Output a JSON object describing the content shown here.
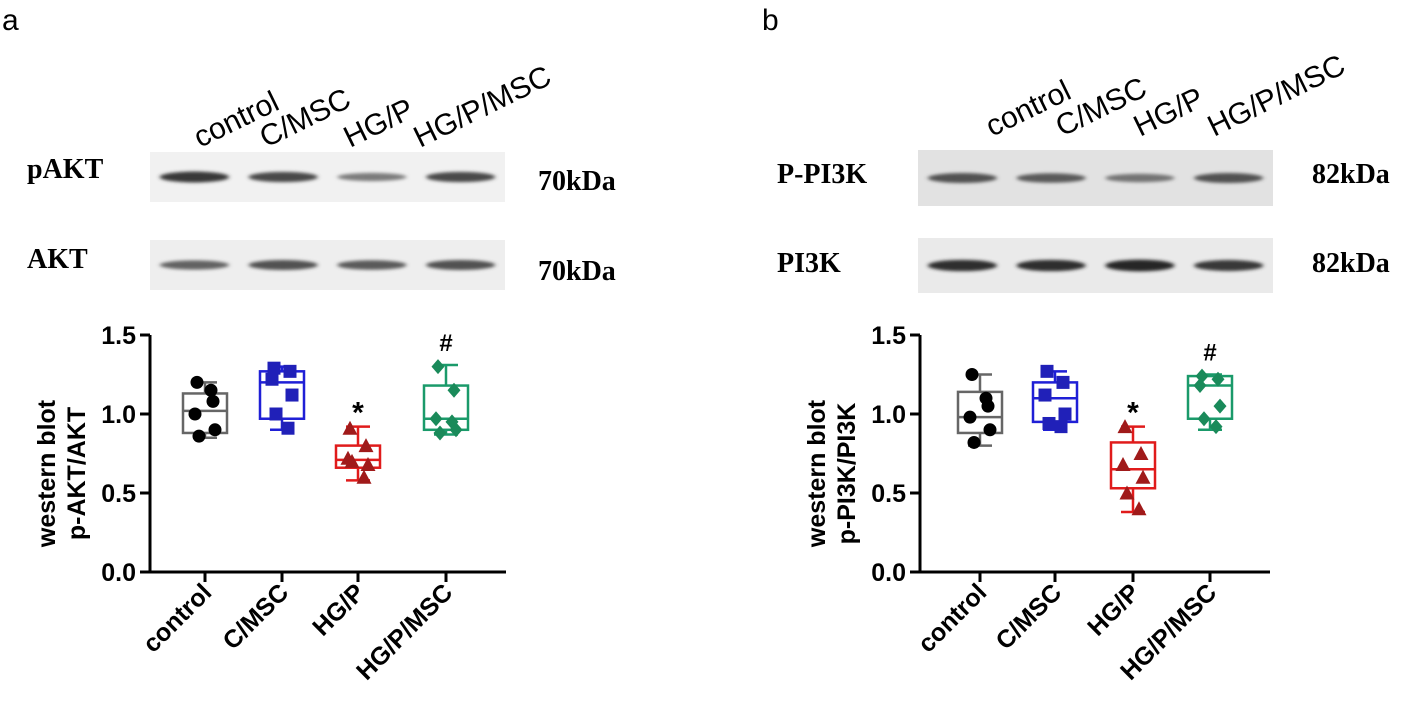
{
  "panels": [
    {
      "letter": "a",
      "lane_labels": [
        "control",
        "C/MSC",
        "HG/P",
        "HG/P/MSC"
      ],
      "blots": [
        {
          "name": "pAKT",
          "size": "70kDa",
          "intensity": [
            0.85,
            0.75,
            0.45,
            0.75
          ]
        },
        {
          "name": "AKT",
          "size": "70kDa",
          "intensity": [
            0.6,
            0.7,
            0.65,
            0.7
          ]
        }
      ]
    },
    {
      "letter": "b",
      "lane_labels": [
        "control",
        "C/MSC",
        "HG/P",
        "HG/P/MSC"
      ],
      "blots": [
        {
          "name": "P-PI3K",
          "size": "82kDa",
          "intensity": [
            0.7,
            0.65,
            0.5,
            0.7
          ]
        },
        {
          "name": "PI3K",
          "size": "82kDa",
          "intensity": [
            0.9,
            0.9,
            0.95,
            0.85
          ]
        }
      ]
    }
  ],
  "chart_data": [
    {
      "type": "box",
      "ylabel": [
        "western blot",
        "p-AKT/AKT"
      ],
      "ylim": [
        0,
        1.5
      ],
      "yticks": [
        "0.0",
        "0.5",
        "1.0",
        "1.5"
      ],
      "categories": [
        "control",
        "C/MSC",
        "HG/P",
        "HG/P/MSC"
      ],
      "colors": [
        "#666666",
        "#1f1fd6",
        "#e01b1b",
        "#1a9a6a"
      ],
      "marker_colors": [
        "#000000",
        "#2020b8",
        "#a01a1a",
        "#1a8a5a"
      ],
      "markers": [
        "circle",
        "square",
        "triangle",
        "diamond"
      ],
      "annotations": [
        "",
        "",
        "*",
        "#"
      ],
      "series": [
        {
          "points": [
            1.2,
            1.08,
            1.0,
            0.9,
            0.86,
            1.15
          ],
          "min": 0.85,
          "q1": 0.88,
          "median": 1.02,
          "q3": 1.13,
          "max": 1.2
        },
        {
          "points": [
            1.29,
            1.27,
            1.22,
            1.12,
            1.0,
            0.91
          ],
          "min": 0.9,
          "q1": 0.97,
          "median": 1.2,
          "q3": 1.27,
          "max": 1.3
        },
        {
          "points": [
            0.91,
            0.8,
            0.72,
            0.68,
            0.7,
            0.6
          ],
          "min": 0.58,
          "q1": 0.66,
          "median": 0.71,
          "q3": 0.8,
          "max": 0.92
        },
        {
          "points": [
            1.3,
            1.15,
            0.97,
            0.9,
            0.88,
            0.95
          ],
          "min": 0.87,
          "q1": 0.9,
          "median": 0.97,
          "q3": 1.18,
          "max": 1.31
        }
      ]
    },
    {
      "type": "box",
      "ylabel": [
        "western blot",
        "p-PI3K/PI3K"
      ],
      "ylim": [
        0,
        1.5
      ],
      "yticks": [
        "0.0",
        "0.5",
        "1.0",
        "1.5"
      ],
      "categories": [
        "control",
        "C/MSC",
        "HG/P",
        "HG/P/MSC"
      ],
      "colors": [
        "#666666",
        "#1f1fd6",
        "#e01b1b",
        "#1a9a6a"
      ],
      "marker_colors": [
        "#000000",
        "#2020b8",
        "#a01a1a",
        "#1a8a5a"
      ],
      "markers": [
        "circle",
        "square",
        "triangle",
        "diamond"
      ],
      "annotations": [
        "",
        "",
        "*",
        "#"
      ],
      "series": [
        {
          "points": [
            1.25,
            1.05,
            0.98,
            0.9,
            0.82,
            1.1
          ],
          "min": 0.8,
          "q1": 0.88,
          "median": 0.98,
          "q3": 1.14,
          "max": 1.25
        },
        {
          "points": [
            1.27,
            1.2,
            1.12,
            1.0,
            0.94,
            0.92
          ],
          "min": 0.9,
          "q1": 0.95,
          "median": 1.1,
          "q3": 1.2,
          "max": 1.27
        },
        {
          "points": [
            0.92,
            0.75,
            0.68,
            0.6,
            0.5,
            0.4
          ],
          "min": 0.38,
          "q1": 0.53,
          "median": 0.65,
          "q3": 0.82,
          "max": 0.92
        },
        {
          "points": [
            1.24,
            1.22,
            1.18,
            1.05,
            0.97,
            0.92
          ],
          "min": 0.9,
          "q1": 0.97,
          "median": 1.18,
          "q3": 1.24,
          "max": 1.25
        }
      ]
    }
  ]
}
